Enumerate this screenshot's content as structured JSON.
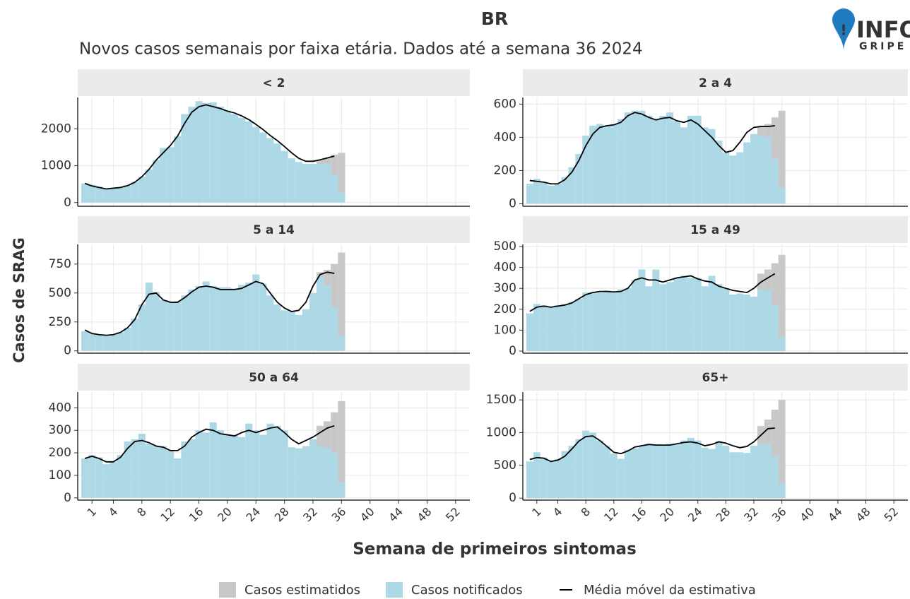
{
  "figure": {
    "title": "BR",
    "subtitle": "Novos casos semanais por faixa etária. Dados até a semana 36 2024",
    "x_label": "Semana de primeiros sintomas",
    "y_label": "Casos de SRAG",
    "logo": {
      "top": "INFO",
      "bottom": "GRIPE"
    },
    "weeks": [
      0,
      1,
      2,
      3,
      4,
      5,
      6,
      7,
      8,
      9,
      10,
      11,
      12,
      13,
      14,
      15,
      16,
      17,
      18,
      19,
      20,
      21,
      22,
      23,
      24,
      25,
      26,
      27,
      28,
      29,
      30,
      31,
      32,
      33,
      34,
      35,
      36
    ],
    "xlim": [
      -1,
      54
    ],
    "xticks": [
      1,
      4,
      8,
      12,
      16,
      20,
      24,
      28,
      32,
      36,
      40,
      44,
      48,
      52
    ],
    "grid": true,
    "legend": [
      {
        "name": "Casos estimatidos",
        "color": "#c8c8c8"
      },
      {
        "name": "Casos notificados",
        "color": "#add8e6"
      },
      {
        "name": "Média móvel da estimativa",
        "color": "#000000"
      }
    ]
  },
  "chart_data": [
    {
      "type": "bar",
      "title": "< 2",
      "ylim": [
        -100,
        2850
      ],
      "yticks": [
        0,
        1000,
        2000
      ],
      "notified": [
        520,
        480,
        430,
        380,
        400,
        420,
        470,
        560,
        700,
        900,
        1150,
        1480,
        1500,
        1800,
        2400,
        2600,
        2750,
        2700,
        2720,
        2600,
        2500,
        2400,
        2300,
        2200,
        2050,
        1900,
        1750,
        1600,
        1400,
        1200,
        1100,
        1050,
        1050,
        1050,
        1050,
        750,
        270
      ],
      "estimated": [
        null,
        null,
        null,
        null,
        null,
        null,
        null,
        null,
        null,
        null,
        null,
        null,
        null,
        null,
        null,
        null,
        null,
        null,
        null,
        null,
        null,
        null,
        null,
        null,
        null,
        null,
        null,
        null,
        null,
        null,
        null,
        null,
        null,
        1150,
        1200,
        1300,
        1350
      ],
      "moving_average": [
        520,
        450,
        410,
        370,
        390,
        410,
        460,
        550,
        700,
        900,
        1150,
        1350,
        1550,
        1800,
        2150,
        2450,
        2600,
        2650,
        2600,
        2550,
        2480,
        2430,
        2350,
        2250,
        2120,
        1980,
        1820,
        1680,
        1520,
        1350,
        1200,
        1120,
        1120,
        1160,
        1210,
        1260,
        null
      ]
    },
    {
      "type": "bar",
      "title": "2 a 4",
      "ylim": [
        -15,
        640
      ],
      "yticks": [
        0,
        200,
        400,
        600
      ],
      "notified": [
        120,
        150,
        130,
        110,
        120,
        160,
        220,
        300,
        410,
        470,
        480,
        470,
        480,
        510,
        550,
        560,
        560,
        530,
        510,
        530,
        550,
        500,
        460,
        530,
        530,
        460,
        450,
        380,
        310,
        290,
        310,
        370,
        420,
        410,
        400,
        270,
        95
      ],
      "estimated": [
        null,
        null,
        null,
        null,
        null,
        null,
        null,
        null,
        null,
        null,
        null,
        null,
        null,
        null,
        null,
        null,
        null,
        null,
        null,
        null,
        null,
        null,
        null,
        null,
        null,
        null,
        null,
        null,
        null,
        null,
        null,
        null,
        null,
        470,
        480,
        520,
        560
      ],
      "moving_average": [
        140,
        135,
        130,
        120,
        120,
        145,
        190,
        260,
        350,
        420,
        460,
        470,
        475,
        490,
        530,
        550,
        540,
        520,
        505,
        515,
        520,
        500,
        490,
        505,
        480,
        440,
        400,
        350,
        310,
        320,
        370,
        430,
        460,
        465,
        465,
        470,
        null
      ]
    },
    {
      "type": "bar",
      "title": "5 a 14",
      "ylim": [
        -20,
        920
      ],
      "yticks": [
        0,
        250,
        500,
        750
      ],
      "notified": [
        170,
        150,
        140,
        135,
        140,
        160,
        200,
        280,
        400,
        590,
        510,
        440,
        420,
        430,
        480,
        530,
        560,
        600,
        560,
        550,
        550,
        540,
        570,
        590,
        660,
        580,
        480,
        400,
        350,
        340,
        310,
        360,
        500,
        640,
        570,
        380,
        130
      ],
      "estimated": [
        null,
        null,
        null,
        null,
        null,
        null,
        null,
        null,
        null,
        null,
        null,
        null,
        null,
        null,
        null,
        null,
        null,
        null,
        null,
        null,
        null,
        null,
        null,
        null,
        null,
        null,
        null,
        null,
        null,
        null,
        null,
        null,
        null,
        680,
        700,
        750,
        850
      ],
      "moving_average": [
        180,
        150,
        140,
        135,
        140,
        160,
        200,
        270,
        400,
        490,
        500,
        440,
        420,
        420,
        460,
        510,
        550,
        560,
        550,
        530,
        530,
        530,
        540,
        570,
        600,
        580,
        500,
        420,
        370,
        340,
        350,
        420,
        560,
        660,
        680,
        670,
        null
      ]
    },
    {
      "type": "bar",
      "title": "15 a 49",
      "ylim": [
        -10,
        510
      ],
      "yticks": [
        0,
        100,
        200,
        300,
        400,
        500
      ],
      "notified": [
        180,
        225,
        220,
        210,
        220,
        225,
        235,
        250,
        280,
        280,
        280,
        290,
        285,
        295,
        300,
        340,
        390,
        310,
        390,
        320,
        330,
        350,
        360,
        350,
        350,
        310,
        360,
        320,
        300,
        270,
        275,
        270,
        260,
        295,
        290,
        220,
        65
      ],
      "estimated": [
        null,
        null,
        null,
        null,
        null,
        null,
        null,
        null,
        null,
        null,
        null,
        null,
        null,
        null,
        null,
        null,
        null,
        null,
        null,
        null,
        null,
        null,
        null,
        null,
        null,
        null,
        null,
        null,
        null,
        null,
        null,
        null,
        null,
        370,
        390,
        420,
        460
      ],
      "moving_average": [
        190,
        210,
        215,
        210,
        215,
        220,
        230,
        250,
        270,
        280,
        285,
        285,
        283,
        285,
        300,
        340,
        350,
        340,
        340,
        330,
        340,
        350,
        355,
        360,
        345,
        335,
        330,
        310,
        300,
        290,
        285,
        280,
        300,
        330,
        350,
        370,
        null
      ]
    },
    {
      "type": "bar",
      "title": "50 a 64",
      "ylim": [
        -10,
        470
      ],
      "yticks": [
        0,
        100,
        200,
        300,
        400
      ],
      "notified": [
        175,
        190,
        180,
        150,
        160,
        190,
        250,
        260,
        285,
        240,
        230,
        230,
        210,
        175,
        250,
        260,
        300,
        290,
        335,
        300,
        280,
        280,
        270,
        330,
        300,
        280,
        330,
        320,
        300,
        225,
        220,
        230,
        260,
        230,
        220,
        200,
        70
      ],
      "estimated": [
        null,
        null,
        null,
        null,
        null,
        null,
        null,
        null,
        null,
        null,
        null,
        null,
        null,
        null,
        null,
        null,
        null,
        null,
        null,
        null,
        null,
        null,
        null,
        null,
        null,
        null,
        null,
        null,
        null,
        null,
        null,
        null,
        null,
        320,
        340,
        380,
        430
      ],
      "moving_average": [
        175,
        185,
        175,
        160,
        160,
        180,
        220,
        250,
        255,
        245,
        230,
        225,
        210,
        210,
        230,
        270,
        290,
        305,
        300,
        285,
        280,
        275,
        290,
        300,
        290,
        300,
        310,
        315,
        290,
        260,
        240,
        255,
        270,
        290,
        310,
        320,
        null
      ]
    },
    {
      "type": "bar",
      "title": "65+",
      "ylim": [
        -30,
        1620
      ],
      "yticks": [
        0,
        500,
        1000,
        1500
      ],
      "notified": [
        560,
        700,
        620,
        560,
        600,
        720,
        800,
        900,
        1030,
        1000,
        880,
        800,
        680,
        600,
        740,
        760,
        800,
        830,
        820,
        800,
        830,
        820,
        880,
        920,
        880,
        770,
        750,
        870,
        800,
        700,
        700,
        690,
        800,
        820,
        830,
        640,
        220
      ],
      "estimated": [
        null,
        null,
        null,
        null,
        null,
        null,
        null,
        null,
        null,
        null,
        null,
        null,
        null,
        null,
        null,
        null,
        null,
        null,
        null,
        null,
        null,
        null,
        null,
        null,
        null,
        null,
        null,
        null,
        null,
        null,
        null,
        null,
        null,
        1100,
        1200,
        1350,
        1500
      ],
      "moving_average": [
        590,
        620,
        610,
        560,
        580,
        640,
        750,
        870,
        940,
        950,
        880,
        790,
        700,
        680,
        720,
        780,
        800,
        820,
        810,
        810,
        810,
        830,
        850,
        860,
        840,
        800,
        820,
        860,
        840,
        800,
        770,
        790,
        860,
        960,
        1060,
        1070,
        null
      ]
    }
  ]
}
